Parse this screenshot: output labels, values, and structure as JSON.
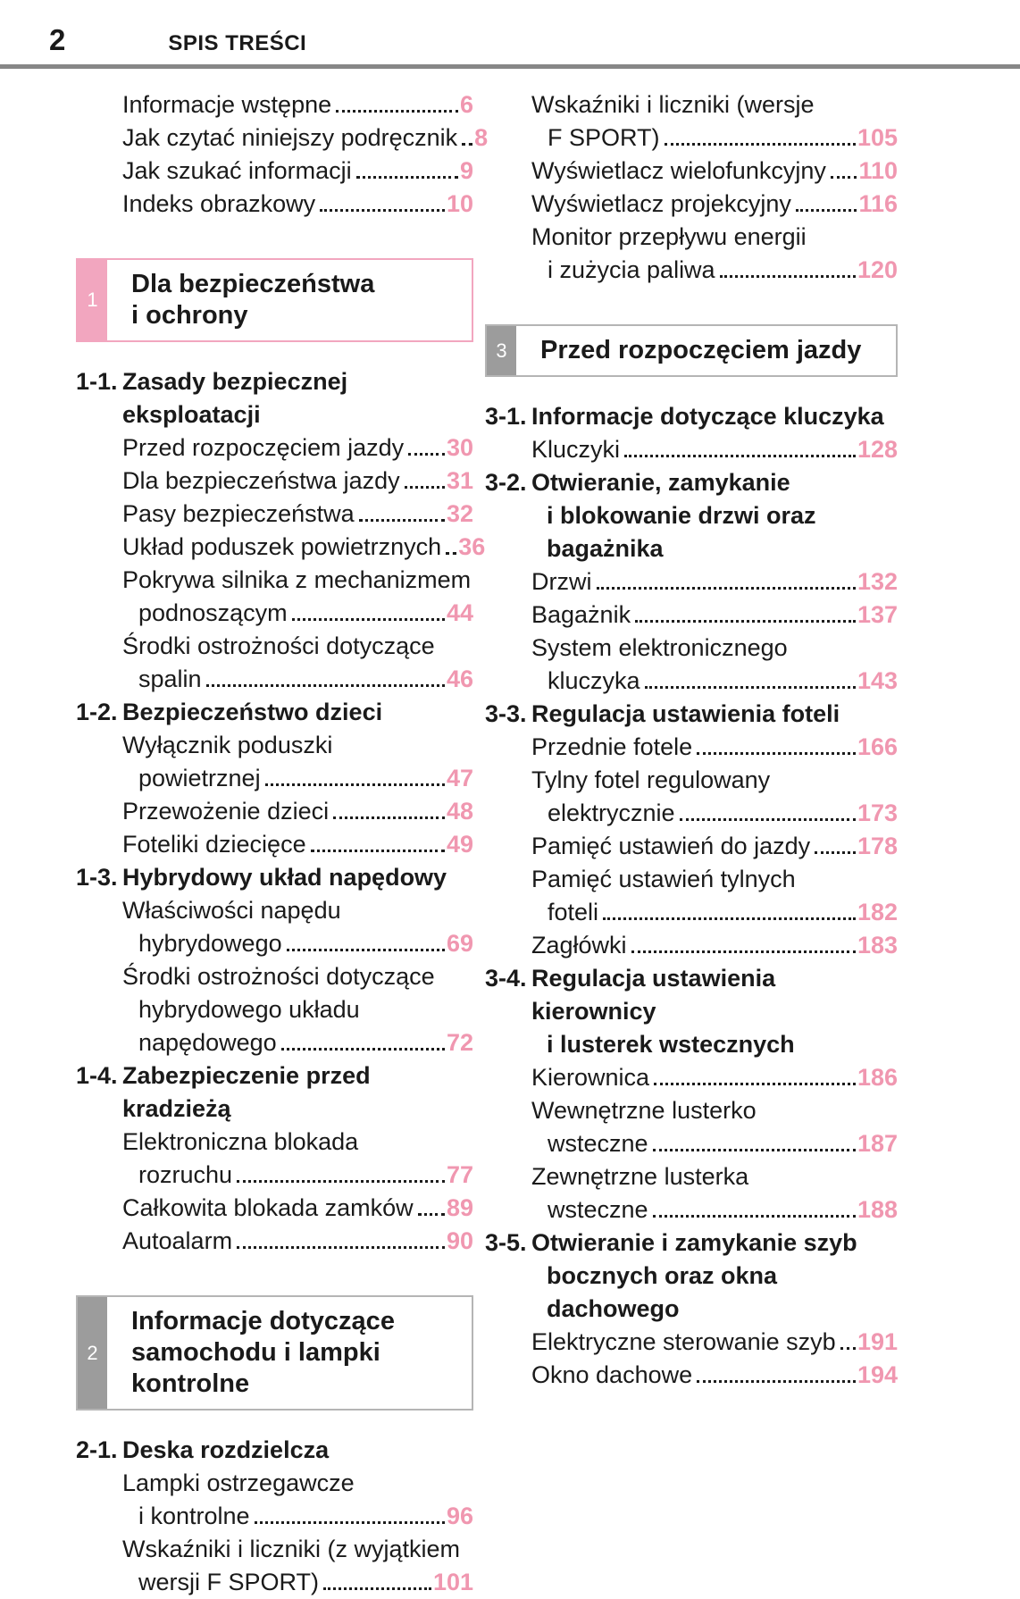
{
  "page": {
    "number": "2",
    "header_title": "SPIS TREŚCI"
  },
  "colors": {
    "accent_pink": "#f2a6bf",
    "page_number_pink": "#f097b0",
    "chapter_gray": "#9c9c9c",
    "rule_gray": "#878787",
    "text": "#1a1a1a"
  },
  "columns": [
    {
      "blocks": [
        {
          "type": "entry",
          "lines": [
            "Informacje wstępne"
          ],
          "page": "6"
        },
        {
          "type": "entry",
          "lines": [
            "Jak czytać niniejszy podręcznik"
          ],
          "page": "8"
        },
        {
          "type": "entry",
          "lines": [
            "Jak szukać informacji"
          ],
          "page": "9"
        },
        {
          "type": "entry",
          "lines": [
            "Indeks obrazkowy"
          ],
          "page": "10"
        },
        {
          "type": "chapter",
          "number": "1",
          "color": "pink",
          "title_lines": [
            "Dla bezpieczeństwa",
            "i ochrony"
          ]
        },
        {
          "type": "sub",
          "id": "1-1.",
          "title_lines": [
            "Zasady bezpiecznej eksploatacji"
          ]
        },
        {
          "type": "entry",
          "lines": [
            "Przed rozpoczęciem jazdy"
          ],
          "page": "30"
        },
        {
          "type": "entry",
          "lines": [
            "Dla bezpieczeństwa jazdy"
          ],
          "page": "31"
        },
        {
          "type": "entry",
          "lines": [
            "Pasy bezpieczeństwa"
          ],
          "page": "32"
        },
        {
          "type": "entry",
          "lines": [
            "Układ poduszek powietrznych"
          ],
          "page": "36"
        },
        {
          "type": "entry",
          "lines": [
            "Pokrywa silnika z mechanizmem",
            "podnoszącym"
          ],
          "page": "44"
        },
        {
          "type": "entry",
          "lines": [
            "Środki ostrożności dotyczące",
            "spalin"
          ],
          "page": "46"
        },
        {
          "type": "sub",
          "id": "1-2.",
          "title_lines": [
            "Bezpieczeństwo dzieci"
          ]
        },
        {
          "type": "entry",
          "lines": [
            "Wyłącznik poduszki",
            "powietrznej"
          ],
          "page": "47"
        },
        {
          "type": "entry",
          "lines": [
            "Przewożenie dzieci"
          ],
          "page": "48"
        },
        {
          "type": "entry",
          "lines": [
            "Foteliki dziecięce"
          ],
          "page": "49"
        },
        {
          "type": "sub",
          "id": "1-3.",
          "title_lines": [
            "Hybrydowy układ napędowy"
          ]
        },
        {
          "type": "entry",
          "lines": [
            "Właściwości napędu",
            "hybrydowego"
          ],
          "page": "69"
        },
        {
          "type": "entry",
          "lines": [
            "Środki ostrożności dotyczące",
            "hybrydowego układu",
            "napędowego"
          ],
          "page": "72"
        },
        {
          "type": "sub",
          "id": "1-4.",
          "title_lines": [
            "Zabezpieczenie przed kradzieżą"
          ]
        },
        {
          "type": "entry",
          "lines": [
            "Elektroniczna blokada",
            "rozruchu"
          ],
          "page": "77"
        },
        {
          "type": "entry",
          "lines": [
            "Całkowita blokada zamków"
          ],
          "page": "89"
        },
        {
          "type": "entry",
          "lines": [
            "Autoalarm"
          ],
          "page": "90"
        },
        {
          "type": "chapter",
          "number": "2",
          "color": "gray",
          "title_lines": [
            "Informacje dotyczące",
            "samochodu i lampki kontrolne"
          ]
        },
        {
          "type": "sub",
          "id": "2-1.",
          "title_lines": [
            "Deska rozdzielcza"
          ]
        },
        {
          "type": "entry",
          "lines": [
            "Lampki ostrzegawcze",
            "i kontrolne"
          ],
          "page": "96"
        },
        {
          "type": "entry",
          "lines": [
            "Wskaźniki i liczniki (z wyjątkiem",
            "wersji F SPORT)"
          ],
          "page": "101"
        }
      ]
    },
    {
      "blocks": [
        {
          "type": "entry",
          "lines": [
            "Wskaźniki i liczniki (wersje",
            "F SPORT)"
          ],
          "page": "105"
        },
        {
          "type": "entry",
          "lines": [
            "Wyświetlacz wielofunkcyjny"
          ],
          "page": "110"
        },
        {
          "type": "entry",
          "lines": [
            "Wyświetlacz projekcyjny"
          ],
          "page": "116"
        },
        {
          "type": "entry",
          "lines": [
            "Monitor przepływu energii",
            "i zużycia paliwa"
          ],
          "page": "120"
        },
        {
          "type": "chapter",
          "number": "3",
          "color": "gray",
          "title_lines": [
            "Przed rozpoczęciem jazdy"
          ]
        },
        {
          "type": "sub",
          "id": "3-1.",
          "title_lines": [
            "Informacje dotyczące kluczyka"
          ]
        },
        {
          "type": "entry",
          "lines": [
            "Kluczyki"
          ],
          "page": "128"
        },
        {
          "type": "sub",
          "id": "3-2.",
          "title_lines": [
            "Otwieranie, zamykanie",
            "i blokowanie drzwi oraz",
            "bagażnika"
          ]
        },
        {
          "type": "entry",
          "lines": [
            "Drzwi"
          ],
          "page": "132"
        },
        {
          "type": "entry",
          "lines": [
            "Bagażnik"
          ],
          "page": "137"
        },
        {
          "type": "entry",
          "lines": [
            "System elektronicznego",
            "kluczyka"
          ],
          "page": "143"
        },
        {
          "type": "sub",
          "id": "3-3.",
          "title_lines": [
            "Regulacja ustawienia foteli"
          ]
        },
        {
          "type": "entry",
          "lines": [
            "Przednie fotele"
          ],
          "page": "166"
        },
        {
          "type": "entry",
          "lines": [
            "Tylny fotel regulowany",
            "elektrycznie"
          ],
          "page": "173"
        },
        {
          "type": "entry",
          "lines": [
            "Pamięć ustawień do jazdy"
          ],
          "page": "178"
        },
        {
          "type": "entry",
          "lines": [
            "Pamięć ustawień tylnych",
            "foteli"
          ],
          "page": "182"
        },
        {
          "type": "entry",
          "lines": [
            "Zagłówki"
          ],
          "page": "183"
        },
        {
          "type": "sub",
          "id": "3-4.",
          "title_lines": [
            "Regulacja ustawienia kierownicy",
            "i lusterek wstecznych"
          ]
        },
        {
          "type": "entry",
          "lines": [
            "Kierownica"
          ],
          "page": "186"
        },
        {
          "type": "entry",
          "lines": [
            "Wewnętrzne lusterko",
            "wsteczne"
          ],
          "page": "187"
        },
        {
          "type": "entry",
          "lines": [
            "Zewnętrzne lusterka",
            "wsteczne"
          ],
          "page": "188"
        },
        {
          "type": "sub",
          "id": "3-5.",
          "title_lines": [
            "Otwieranie i zamykanie szyb",
            "bocznych oraz okna",
            "dachowego"
          ]
        },
        {
          "type": "entry",
          "lines": [
            "Elektryczne sterowanie szyb"
          ],
          "page": "191"
        },
        {
          "type": "entry",
          "lines": [
            "Okno dachowe"
          ],
          "page": "194"
        }
      ]
    }
  ]
}
